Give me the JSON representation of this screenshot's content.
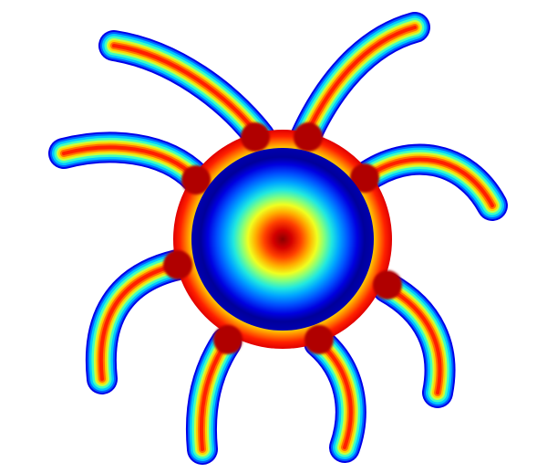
{
  "figure": {
    "subject": "heatmap-spider-shape",
    "colormap": [
      "#00008f",
      "#0000ff",
      "#00a0ff",
      "#00ffff",
      "#80ff80",
      "#ffff00",
      "#ff8000",
      "#ff0000",
      "#800000"
    ],
    "background_color": "#ffffff",
    "leg_count": 8,
    "core_rings": [
      "#8b0000",
      "#e00000",
      "#ff6000",
      "#ffd000",
      "#c8ff40",
      "#40ffc0",
      "#00c8ff",
      "#0060ff",
      "#0000e0",
      "#00008f"
    ]
  }
}
